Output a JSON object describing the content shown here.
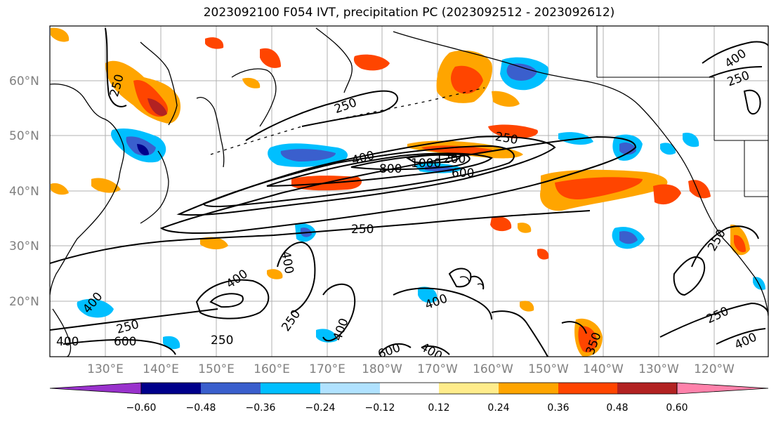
{
  "title": "2023092100 F054 IVT, precipitation PC (2023092512 - 2023092612)",
  "lat_ticks": [
    "60°N",
    "50°N",
    "40°N",
    "30°N",
    "20°N"
  ],
  "lon_ticks": [
    "130°E",
    "140°E",
    "150°E",
    "160°E",
    "170°E",
    "180°W",
    "170°W",
    "160°W",
    "150°W",
    "140°W",
    "130°W",
    "120°W"
  ],
  "colorbar": {
    "tick_labels": [
      "−0.60",
      "−0.48",
      "−0.36",
      "−0.24",
      "−0.12",
      "0.12",
      "0.24",
      "0.36",
      "0.48",
      "0.60"
    ],
    "colors": [
      "#9932cc",
      "#00008b",
      "#3a5fcd",
      "#00bfff",
      "#b0e2ff",
      "#ffffff",
      "#ffec8b",
      "#ffa500",
      "#ff4500",
      "#b22222",
      "#ff82ab"
    ]
  },
  "contour_labels": [
    "250",
    "250",
    "400",
    "800",
    "1000",
    "1200",
    "600",
    "250",
    "250",
    "400",
    "250",
    "400",
    "250",
    "400",
    "400",
    "250",
    "400",
    "600",
    "400",
    "400",
    "600",
    "250",
    "400",
    "250",
    "350",
    "400",
    "250"
  ]
}
